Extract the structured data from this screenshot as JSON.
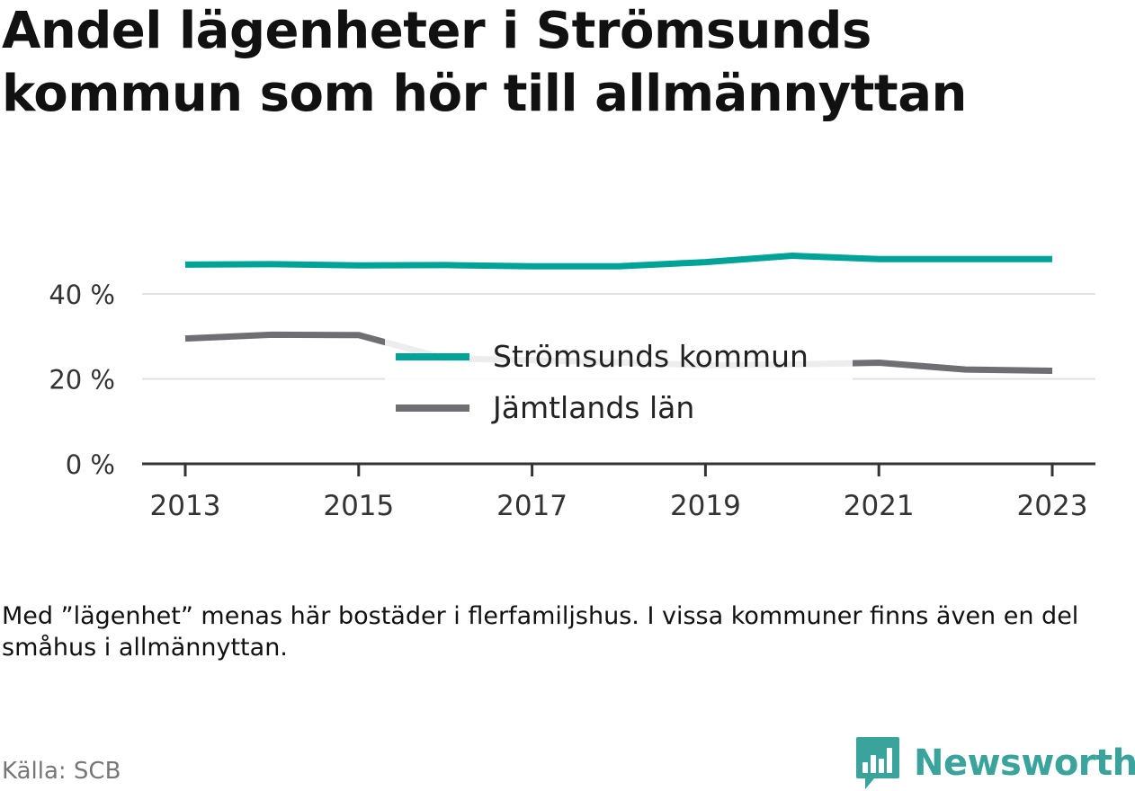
{
  "header": {
    "title": "Andel lägenheter i Strömsunds kommun som hör till allmännyttan"
  },
  "footer": {
    "note": "Med ”lägenhet” menas här bostäder i flerfamiljshus. I vissa kommuner finns även en del småhus i allmännyttan.",
    "source": "Källa: SCB",
    "brand": "Newsworthy"
  },
  "chart_data": {
    "type": "line",
    "title": "Andel lägenheter i Strömsunds kommun som hör till allmännyttan",
    "xlabel": "",
    "ylabel": "",
    "x": [
      2013,
      2014,
      2015,
      2016,
      2017,
      2018,
      2019,
      2020,
      2021,
      2022,
      2023
    ],
    "x_tick_labels": [
      "2013",
      "2015",
      "2017",
      "2019",
      "2021",
      "2023"
    ],
    "y_tick_labels": [
      "0 %",
      "20 %",
      "40 %"
    ],
    "y_ticks": [
      0,
      20,
      40
    ],
    "ylim": [
      0,
      57
    ],
    "grid": "horizontal",
    "legend_position": "center",
    "series": [
      {
        "name": "Strömsunds kommun",
        "color": "#00a398",
        "values": [
          46.9,
          47.0,
          46.7,
          46.8,
          46.5,
          46.5,
          47.5,
          49.0,
          48.2,
          48.2,
          48.2
        ]
      },
      {
        "name": "Jämtlands län",
        "color": "#6e6e73",
        "values": [
          29.5,
          30.4,
          30.3,
          24.8,
          24.4,
          23.9,
          23.2,
          23.4,
          23.8,
          22.2,
          21.9
        ]
      }
    ]
  }
}
